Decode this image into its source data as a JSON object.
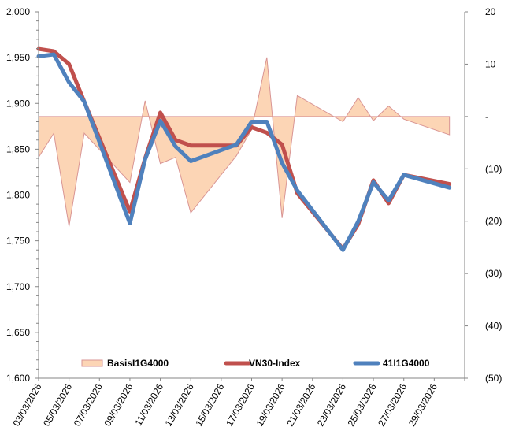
{
  "chart_data": {
    "type": "line",
    "title": "",
    "xlabel": "",
    "ylabel": "",
    "y2label": "",
    "grid": false,
    "legend_position": "bottom-inside",
    "x_ticks": [
      "03/03/2026",
      "05/03/2026",
      "07/03/2026",
      "09/03/2026",
      "11/03/2026",
      "13/03/2026",
      "15/03/2026",
      "17/03/2026",
      "19/03/2026",
      "21/03/2026",
      "23/03/2026",
      "25/03/2026",
      "27/03/2026",
      "29/03/2026"
    ],
    "x_day_range": [
      3,
      31
    ],
    "x_days": [
      3,
      4,
      5,
      6,
      9,
      10,
      11,
      12,
      13,
      16,
      17,
      18,
      19,
      20,
      23,
      24,
      25,
      26,
      27,
      30
    ],
    "ylim": [
      1600,
      2000
    ],
    "y_ticks": [
      1600,
      1650,
      1700,
      1750,
      1800,
      1850,
      1900,
      1950,
      2000
    ],
    "y_tick_labels": [
      "1,600",
      "1,650",
      "1,700",
      "1,750",
      "1,800",
      "1,850",
      "1,900",
      "1,950",
      "2,000"
    ],
    "y2lim": [
      -50,
      20
    ],
    "y2_ticks": [
      -50,
      -40,
      -30,
      -20,
      -10,
      0,
      10,
      20
    ],
    "y2_tick_labels": [
      "(50)",
      "(40)",
      "(30)",
      "(20)",
      "(10)",
      "-",
      "10",
      "20"
    ],
    "series": [
      {
        "name": "BasisI1G4000",
        "type": "area",
        "axis": "right",
        "color": "#FCD5B5",
        "edge_color": "#D99594",
        "values": [
          -7.8,
          -3.2,
          -21.0,
          -3.2,
          -12.6,
          3.0,
          -9.0,
          -7.8,
          -18.4,
          -7.5,
          -2.5,
          11.3,
          -19.4,
          4.0,
          -1.0,
          3.6,
          -0.8,
          2.0,
          -0.5,
          -3.5
        ]
      },
      {
        "name": "VN30-Index",
        "type": "line",
        "axis": "left",
        "color": "#C0504D",
        "values": [
          1959.5,
          1957.0,
          1943.0,
          1902.0,
          1782.0,
          1840.0,
          1890.0,
          1860.0,
          1854.0,
          1854.0,
          1874.0,
          1868.0,
          1855.0,
          1802.0,
          1741.0,
          1768.0,
          1816.0,
          1791.0,
          1822.0,
          1812.0
        ]
      },
      {
        "name": "41I1G4000",
        "type": "line",
        "axis": "left",
        "color": "#4F81BD",
        "values": [
          1951.5,
          1953.5,
          1923.0,
          1902.0,
          1769.0,
          1839.0,
          1881.0,
          1853.0,
          1837.0,
          1855.0,
          1880.0,
          1880.0,
          1835.0,
          1805.0,
          1740.0,
          1771.0,
          1814.0,
          1794.0,
          1822.0,
          1808.0
        ]
      }
    ]
  }
}
